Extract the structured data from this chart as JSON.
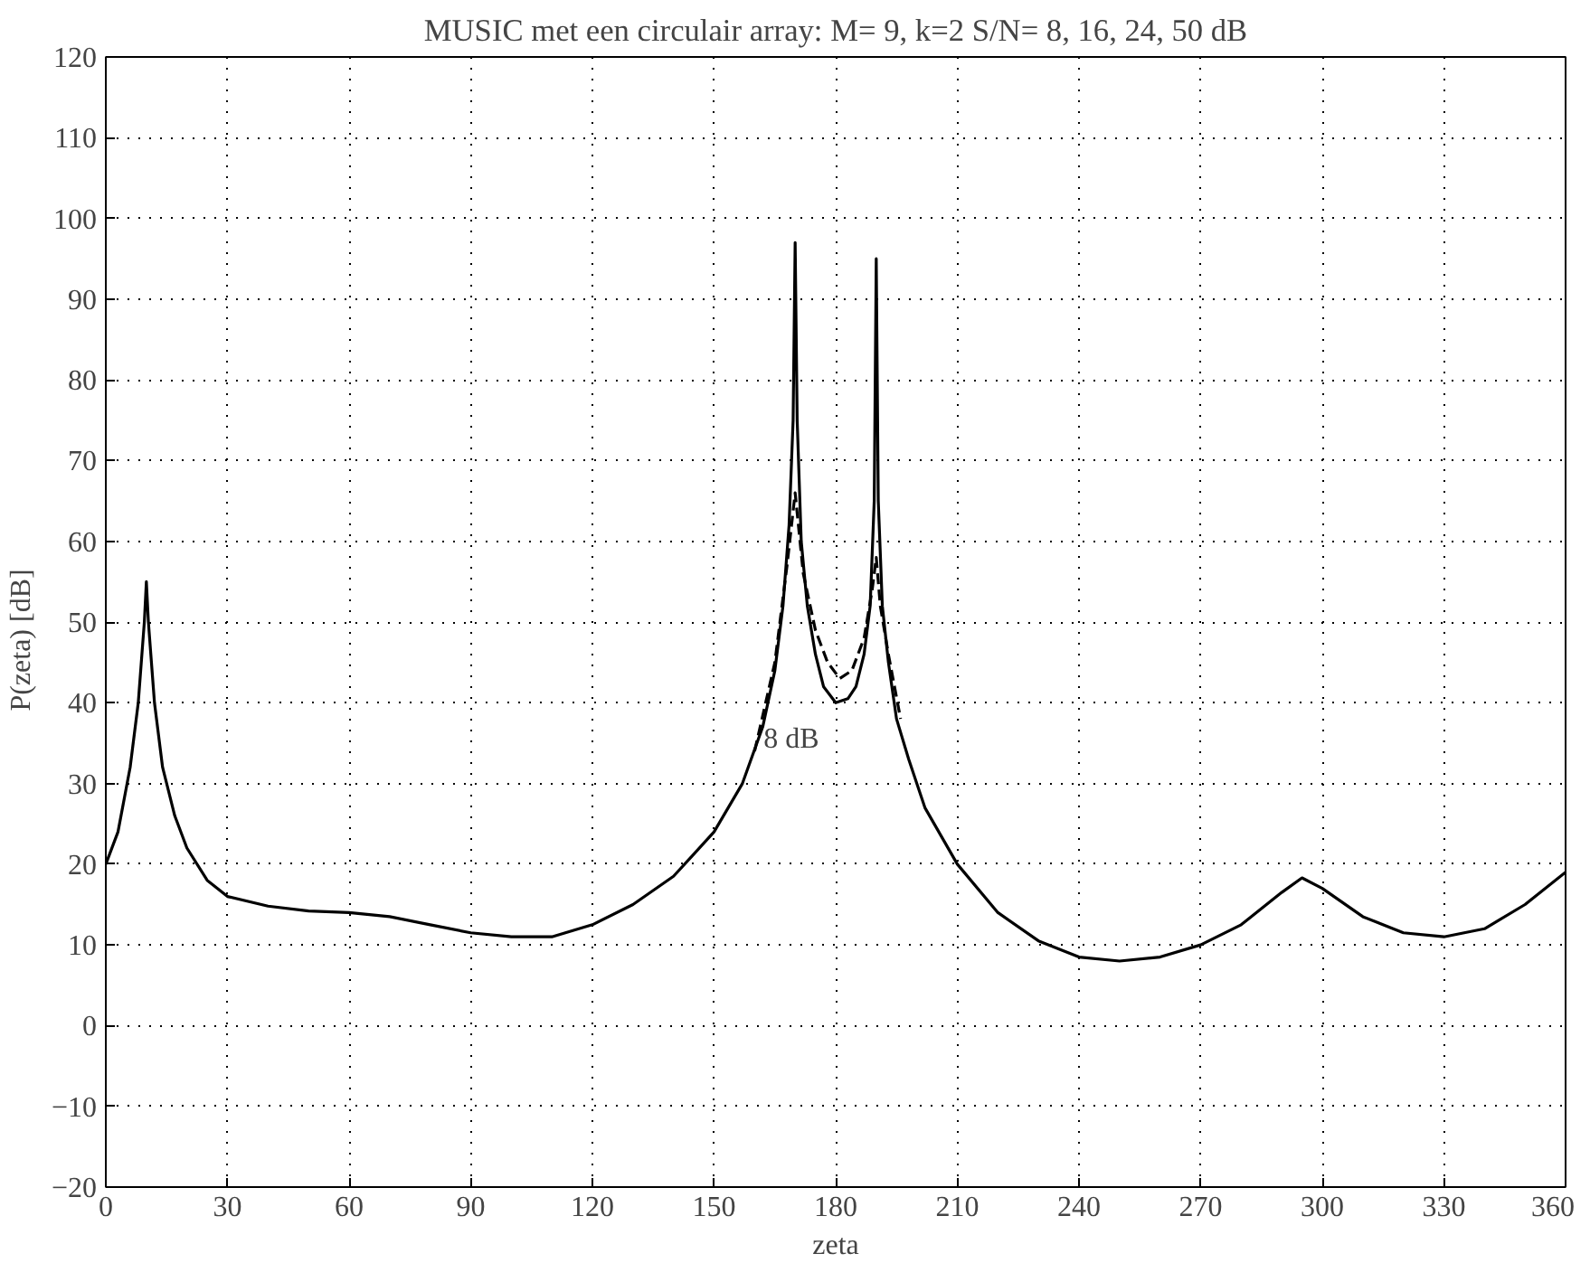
{
  "chart_data": {
    "type": "line",
    "title": "MUSIC met een circulair array: M= 9, k=2 S/N= 8, 16, 24, 50 dB",
    "xlabel": "zeta",
    "ylabel": "P(zeta)      [dB]",
    "xlim": [
      0,
      360
    ],
    "ylim": [
      -20,
      120
    ],
    "xticks": [
      0,
      30,
      60,
      90,
      120,
      150,
      180,
      210,
      240,
      270,
      300,
      330,
      360
    ],
    "yticks": [
      -20,
      -10,
      0,
      10,
      20,
      30,
      40,
      50,
      60,
      70,
      80,
      90,
      100,
      110,
      120
    ],
    "grid": true,
    "series": [
      {
        "color": "#000000",
        "line_style": "solid",
        "x": [
          0,
          3,
          6,
          8,
          9.5,
          10,
          10.5,
          12,
          14,
          17,
          20,
          25,
          30,
          40,
          50,
          60,
          70,
          80,
          90,
          100,
          110,
          120,
          130,
          140,
          150,
          157,
          162,
          165,
          167,
          168.5,
          169.5,
          170,
          170.5,
          171.5,
          173,
          175,
          177,
          180,
          183,
          185,
          187,
          188.5,
          189.5,
          190,
          190.5,
          191.5,
          193,
          195,
          198,
          202,
          210,
          220,
          230,
          240,
          250,
          260,
          270,
          280,
          290,
          295,
          300,
          310,
          320,
          330,
          340,
          350,
          360
        ],
        "values": [
          20,
          24,
          32,
          40,
          50,
          55,
          50,
          40,
          32,
          26,
          22,
          18,
          16,
          14.8,
          14.2,
          14,
          13.5,
          12.5,
          11.5,
          11,
          11,
          12.5,
          15,
          18.5,
          24,
          30,
          37,
          44,
          52,
          62,
          75,
          97,
          75,
          60,
          52,
          46,
          42,
          40,
          40.5,
          42,
          46,
          52,
          65,
          95,
          65,
          52,
          45,
          38,
          33,
          27,
          20,
          14,
          10.5,
          8.5,
          8,
          8.5,
          10,
          12.5,
          16.5,
          18.3,
          17,
          13.5,
          11.5,
          11,
          12,
          15,
          19
        ]
      },
      {
        "name": "8 dB",
        "color": "#000000",
        "line_style": "dashed",
        "x": [
          160,
          165,
          168,
          170,
          172,
          175,
          178,
          181,
          184,
          187,
          189,
          190,
          191,
          193,
          196
        ],
        "values": [
          34,
          45,
          57,
          66,
          56,
          49,
          45,
          43,
          44,
          48,
          54,
          58,
          52,
          46,
          38
        ]
      }
    ]
  }
}
